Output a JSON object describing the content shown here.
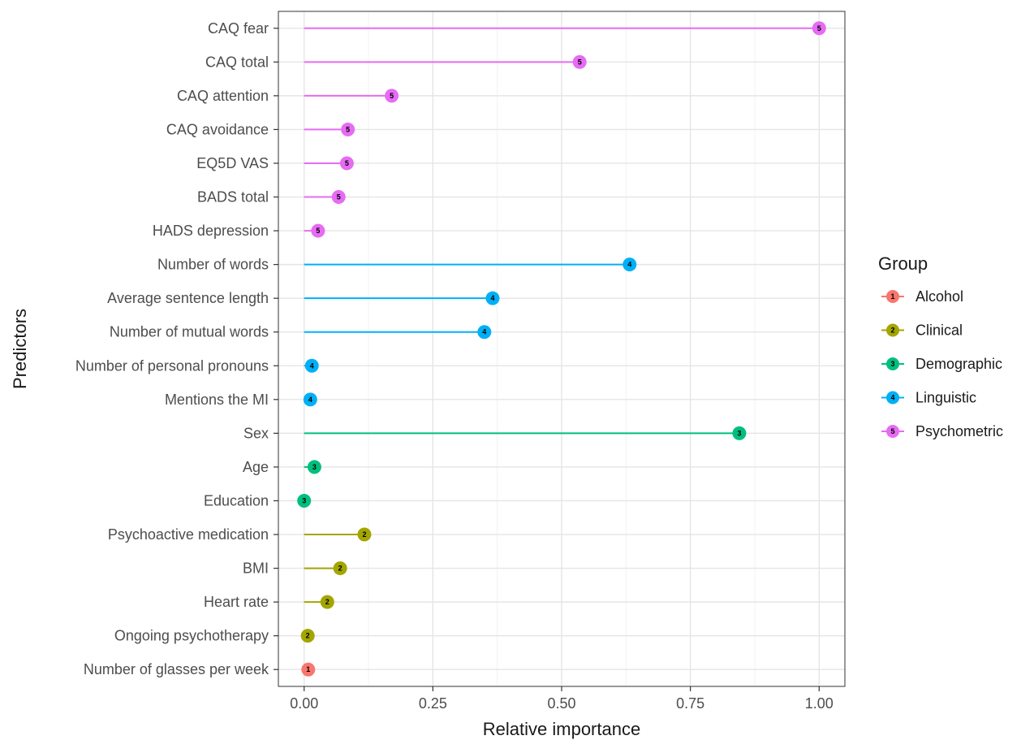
{
  "chart_data": {
    "type": "lollipop",
    "xlabel": "Relative importance",
    "ylabel": "Predictors",
    "xlim": [
      -0.05,
      1.05
    ],
    "xticks": [
      0.0,
      0.25,
      0.5,
      0.75,
      1.0
    ],
    "xtick_labels": [
      "0.00",
      "0.25",
      "0.50",
      "0.75",
      "1.00"
    ],
    "grid": true,
    "legend": {
      "title": "Group",
      "position": "right",
      "entries": [
        {
          "id": "1",
          "name": "Alcohol",
          "color": "#F8766D"
        },
        {
          "id": "2",
          "name": "Clinical",
          "color": "#A3A500"
        },
        {
          "id": "3",
          "name": "Demographic",
          "color": "#00BF7D"
        },
        {
          "id": "4",
          "name": "Linguistic",
          "color": "#00B0F6"
        },
        {
          "id": "5",
          "name": "Psychometric",
          "color": "#E76BF3"
        }
      ]
    },
    "predictors": [
      {
        "name": "CAQ fear",
        "value": 1.0,
        "group": "5"
      },
      {
        "name": "CAQ total",
        "value": 0.535,
        "group": "5"
      },
      {
        "name": "CAQ attention",
        "value": 0.17,
        "group": "5"
      },
      {
        "name": "CAQ avoidance",
        "value": 0.085,
        "group": "5"
      },
      {
        "name": "EQ5D VAS",
        "value": 0.083,
        "group": "5"
      },
      {
        "name": "BADS total",
        "value": 0.067,
        "group": "5"
      },
      {
        "name": "HADS depression",
        "value": 0.027,
        "group": "5"
      },
      {
        "name": "Number of words",
        "value": 0.632,
        "group": "4"
      },
      {
        "name": "Average sentence length",
        "value": 0.366,
        "group": "4"
      },
      {
        "name": "Number of mutual words",
        "value": 0.35,
        "group": "4"
      },
      {
        "name": "Number of personal pronouns",
        "value": 0.015,
        "group": "4"
      },
      {
        "name": "Mentions the MI",
        "value": 0.012,
        "group": "4"
      },
      {
        "name": "Sex",
        "value": 0.845,
        "group": "3"
      },
      {
        "name": "Age",
        "value": 0.02,
        "group": "3"
      },
      {
        "name": "Education",
        "value": 0.0,
        "group": "3"
      },
      {
        "name": "Psychoactive medication",
        "value": 0.117,
        "group": "2"
      },
      {
        "name": "BMI",
        "value": 0.07,
        "group": "2"
      },
      {
        "name": "Heart rate",
        "value": 0.045,
        "group": "2"
      },
      {
        "name": "Ongoing psychotherapy",
        "value": 0.007,
        "group": "2"
      },
      {
        "name": "Number of glasses per week",
        "value": 0.008,
        "group": "1"
      }
    ]
  }
}
